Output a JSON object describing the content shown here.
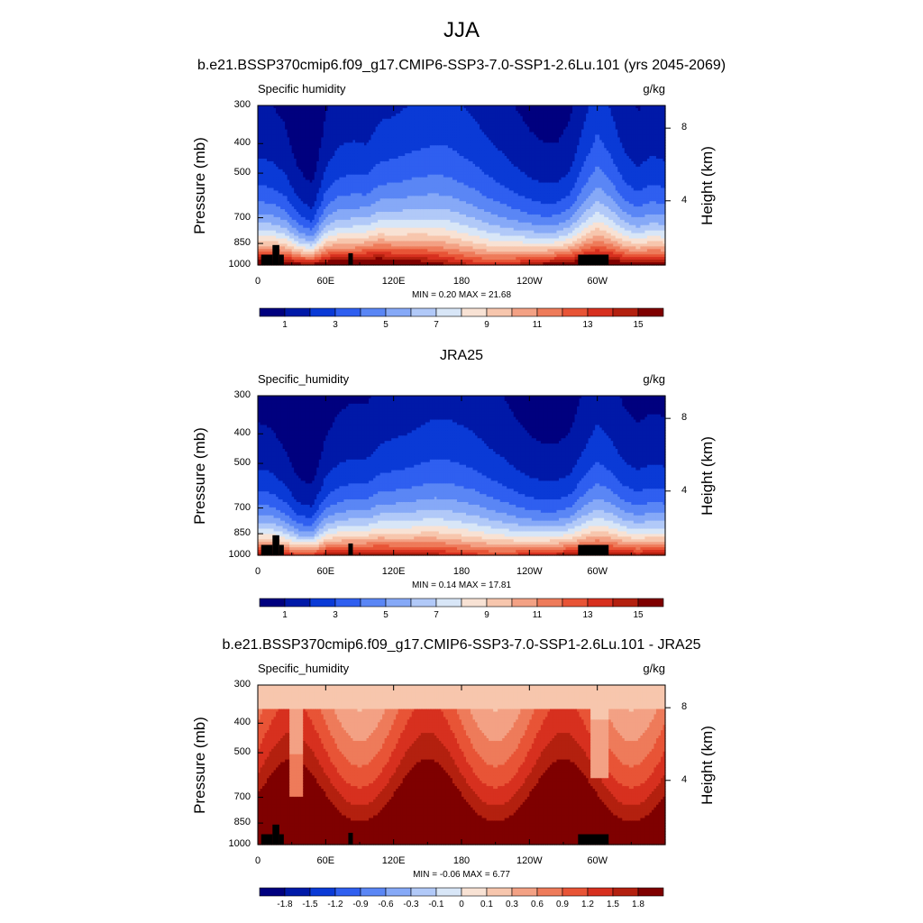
{
  "figure": {
    "title": "JJA",
    "panels": [
      {
        "title": "b.e21.BSSP370cmip6.f09_g17.CMIP6-SSP3-7.0-SSP1-2.6Lu.101 (yrs 2045-2069)",
        "left_label": "Specific humidity",
        "right_label": "g/kg",
        "ylabel": "Pressure (mb)",
        "ylabel_right": "Height (km)",
        "minmax": "MIN =   0.20  MAX =  21.68"
      },
      {
        "title": "JRA25",
        "left_label": "Specific_humidity",
        "right_label": "g/kg",
        "ylabel": "Pressure (mb)",
        "ylabel_right": "Height (km)",
        "minmax": "MIN =   0.14  MAX =  17.81"
      },
      {
        "title": "b.e21.BSSP370cmip6.f09_g17.CMIP6-SSP3-7.0-SSP1-2.6Lu.101 - JRA25",
        "left_label": "Specific_humidity",
        "right_label": "g/kg",
        "ylabel": "Pressure (mb)",
        "ylabel_right": "Height (km)",
        "minmax": "MIN =  -0.06  MAX =   6.77"
      }
    ]
  },
  "chart_data": [
    {
      "type": "heatmap",
      "panel": "model",
      "title": "b.e21.BSSP370cmip6.f09_g17.CMIP6-SSP3-7.0-SSP1-2.6Lu.101 (yrs 2045-2069)",
      "variable": "Specific humidity",
      "units": "g/kg",
      "xlabel": "",
      "ylabel": "Pressure (mb)",
      "ylabel_right": "Height (km)",
      "x_ticks": [
        "0",
        "60E",
        "120E",
        "180",
        "120W",
        "60W"
      ],
      "x_tick_values": [
        0,
        60,
        120,
        180,
        240,
        300
      ],
      "xlim": [
        0,
        360
      ],
      "y_ticks": [
        "300",
        "400",
        "500",
        "700",
        "850",
        "1000"
      ],
      "y_tick_values": [
        300,
        400,
        500,
        700,
        850,
        1000
      ],
      "ylim": [
        1000,
        300
      ],
      "y_scale": "log",
      "right_ticks": [
        "8",
        "4"
      ],
      "right_tick_values": [
        8,
        4
      ],
      "min": 0.2,
      "max": 21.68,
      "colorbar_levels": [
        0,
        1,
        2,
        3,
        4,
        5,
        6,
        7,
        8,
        9,
        10,
        11,
        12,
        13,
        14,
        15
      ],
      "colorbar_labels": [
        "1",
        "3",
        "5",
        "7",
        "9",
        "11",
        "13",
        "15"
      ],
      "field_surface_value": [
        17.0,
        17.2,
        16.9,
        16.0,
        15.6,
        17.0,
        17.0,
        16.8,
        17.8,
        17.8,
        17.0,
        16.8,
        16.5,
        16.0,
        15.3,
        14.7,
        14.2,
        13.8,
        14.0,
        14.5,
        15.2,
        15.8,
        16.4,
        16.8,
        17.3,
        17.7,
        17.2,
        16.4,
        16.0,
        16.6,
        16.3
      ],
      "field_scale_height_hpa": [
        310,
        300,
        280,
        225,
        200,
        290,
        330,
        340,
        325,
        360,
        375,
        390,
        405,
        420,
        430,
        420,
        405,
        380,
        350,
        315,
        285,
        265,
        260,
        285,
        360,
        420,
        380,
        325,
        300,
        315,
        310
      ]
    },
    {
      "type": "heatmap",
      "panel": "reanalysis",
      "title": "JRA25",
      "variable": "Specific_humidity",
      "units": "g/kg",
      "xlabel": "",
      "ylabel": "Pressure (mb)",
      "ylabel_right": "Height (km)",
      "x_ticks": [
        "0",
        "60E",
        "120E",
        "180",
        "120W",
        "60W"
      ],
      "x_tick_values": [
        0,
        60,
        120,
        180,
        240,
        300
      ],
      "xlim": [
        0,
        360
      ],
      "y_ticks": [
        "300",
        "400",
        "500",
        "700",
        "850",
        "1000"
      ],
      "y_tick_values": [
        300,
        400,
        500,
        700,
        850,
        1000
      ],
      "ylim": [
        1000,
        300
      ],
      "y_scale": "log",
      "right_ticks": [
        "8",
        "4"
      ],
      "right_tick_values": [
        8,
        4
      ],
      "min": 0.14,
      "max": 17.81,
      "colorbar_levels": [
        0,
        1,
        2,
        3,
        4,
        5,
        6,
        7,
        8,
        9,
        10,
        11,
        12,
        13,
        14,
        15
      ],
      "colorbar_labels": [
        "1",
        "3",
        "5",
        "7",
        "9",
        "11",
        "13",
        "15"
      ],
      "field_surface_value": [
        14.8,
        15.1,
        14.4,
        13.5,
        13.8,
        15.0,
        15.2,
        15.2,
        15.5,
        15.6,
        15.1,
        15.0,
        14.9,
        14.7,
        14.3,
        13.9,
        13.6,
        13.4,
        13.3,
        13.6,
        14.0,
        14.4,
        14.8,
        15.2,
        15.5,
        15.6,
        15.4,
        15.0,
        14.7,
        15.0,
        14.9
      ],
      "field_scale_height_hpa": [
        285,
        275,
        250,
        205,
        190,
        265,
        295,
        305,
        300,
        330,
        345,
        355,
        370,
        385,
        390,
        385,
        375,
        350,
        330,
        300,
        275,
        258,
        255,
        270,
        320,
        365,
        340,
        300,
        285,
        295,
        290
      ]
    },
    {
      "type": "heatmap",
      "panel": "difference",
      "title": "b.e21.BSSP370cmip6.f09_g17.CMIP6-SSP3-7.0-SSP1-2.6Lu.101 - JRA25",
      "variable": "Specific_humidity",
      "units": "g/kg",
      "xlabel": "",
      "ylabel": "Pressure (mb)",
      "ylabel_right": "Height (km)",
      "x_ticks": [
        "0",
        "60E",
        "120E",
        "180",
        "120W",
        "60W"
      ],
      "x_tick_values": [
        0,
        60,
        120,
        180,
        240,
        300
      ],
      "xlim": [
        0,
        360
      ],
      "y_ticks": [
        "300",
        "400",
        "500",
        "700",
        "850",
        "1000"
      ],
      "y_tick_values": [
        300,
        400,
        500,
        700,
        850,
        1000
      ],
      "ylim": [
        1000,
        300
      ],
      "y_scale": "log",
      "right_ticks": [
        "8",
        "4"
      ],
      "right_tick_values": [
        8,
        4
      ],
      "min": -0.06,
      "max": 6.77,
      "colorbar_levels": [
        -2.1,
        -1.8,
        -1.5,
        -1.2,
        -0.9,
        -0.6,
        -0.3,
        -0.1,
        0,
        0.1,
        0.3,
        0.6,
        0.9,
        1.2,
        1.5,
        1.8
      ],
      "colorbar_labels": [
        "-1.8",
        "-1.5",
        "-1.2",
        "-0.9",
        "-0.6",
        "-0.3",
        "-0.1",
        "0",
        "0.1",
        "0.3",
        "0.6",
        "0.9",
        "1.2",
        "1.5",
        "1.8"
      ]
    }
  ],
  "colormap": [
    "#00007f",
    "#0019a8",
    "#0a3ad6",
    "#2f5ff0",
    "#5a86f5",
    "#86a9f7",
    "#b1c9f8",
    "#d8e6f7",
    "#f8e2d4",
    "#f7c6ad",
    "#f3a184",
    "#ee7b5a",
    "#e85436",
    "#d7301f",
    "#b3200f",
    "#7f0000"
  ],
  "topography_color": "#000000"
}
